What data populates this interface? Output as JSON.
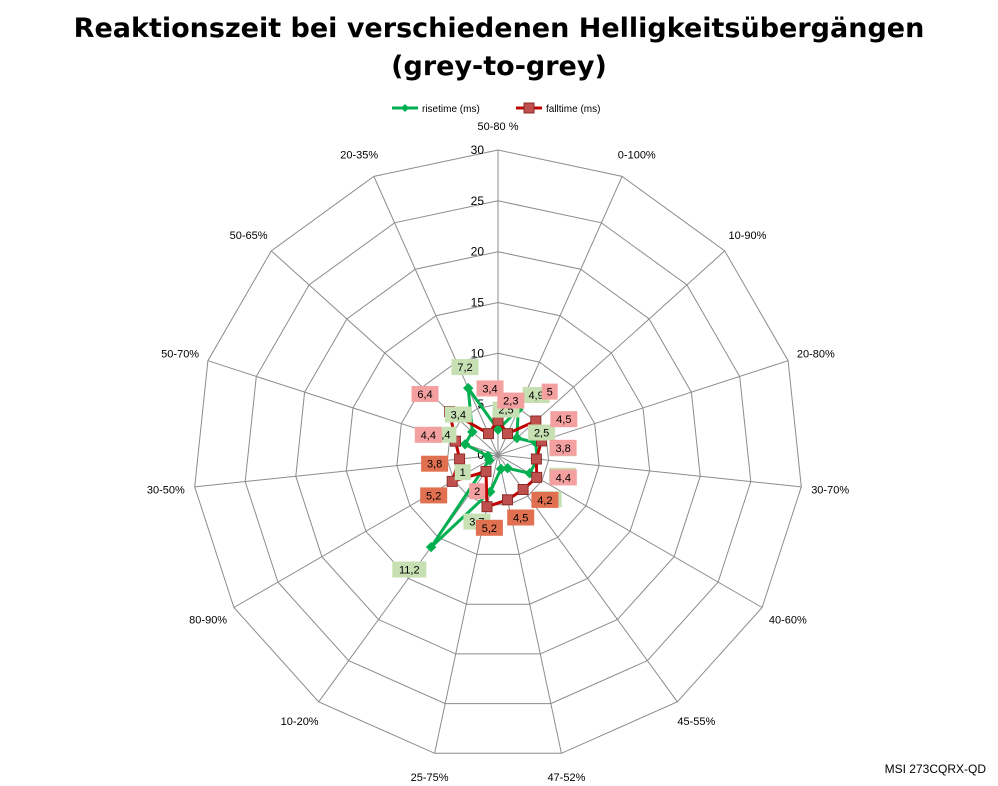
{
  "chart_data": {
    "type": "radar",
    "title_lines": [
      "Reaktionszeit bei verschiedenen Helligkeitsübergängen",
      "(grey-to-grey)"
    ],
    "categories": [
      "50-80 %",
      "0-100%",
      "10-90%",
      "20-80%",
      "30-70%",
      "40-60%",
      "45-55%",
      "47-52%",
      "25-75%",
      "10-20%",
      "80-90%",
      "30-50%",
      "50-70%",
      "50-65%",
      "20-35%"
    ],
    "radial_ticks": [
      0,
      5,
      10,
      15,
      20,
      25,
      30
    ],
    "rmax": 30,
    "grid": true,
    "legend_position": "top",
    "series": [
      {
        "name": "risetime (ms)",
        "color": "#00b050",
        "marker": "diamond",
        "values": [
          2.5,
          4.9,
          2.5,
          3.9,
          3.9,
          3.6,
          1.6,
          1.4,
          3.7,
          11.2,
          1,
          1,
          3.4,
          3.4,
          7.2
        ],
        "labels": [
          "2,5",
          "4,9",
          "2,5",
          "3,9",
          "3,9",
          "3,6",
          "",
          "",
          "3,7",
          "11,2",
          "1",
          "",
          "3,4",
          "3,4",
          "7,2"
        ],
        "label_color": "#c6e0b4"
      },
      {
        "name": "falltime (ms)",
        "color": "#c00000",
        "marker": "square",
        "values": [
          3.4,
          2.3,
          5,
          4.5,
          3.8,
          4.4,
          4.2,
          4.5,
          5.2,
          2,
          5.2,
          3.8,
          4.4,
          6.4,
          2.3
        ],
        "labels": [
          "3,4",
          "2,3",
          "5",
          "4,5",
          "3,8",
          "4,4",
          "4,2",
          "4,5",
          "5,2",
          "2",
          "5,2",
          "3,8",
          "4,4",
          "6,4",
          ""
        ],
        "label_color": "#f4a0a0",
        "label_color_strong": "#e07050"
      }
    ]
  },
  "credit": "MSI 273CQRX-QD"
}
